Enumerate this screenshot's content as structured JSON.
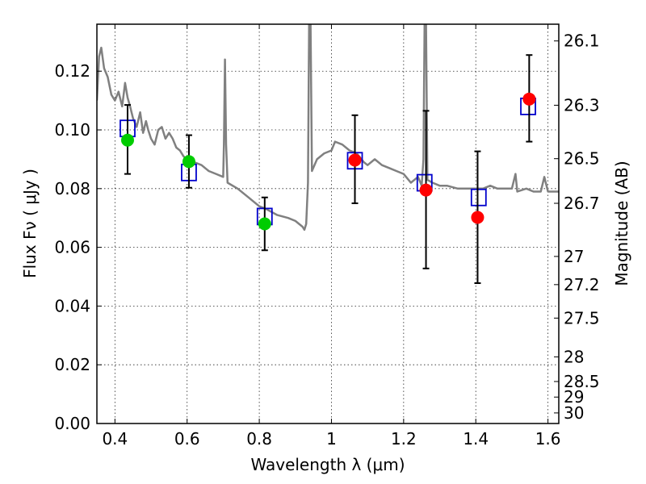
{
  "chart_data": {
    "type": "scatter",
    "xlabel": "Wavelength  λ (μm)",
    "ylabel": "Flux  Fν  ( μJy )",
    "y2label": "Magnitude (AB)",
    "xlim": [
      0.35,
      1.63
    ],
    "ylim": [
      0.0,
      0.136
    ],
    "grid": true,
    "x_ticks": [
      0.4,
      0.6,
      0.8,
      1.0,
      1.2,
      1.4,
      1.6
    ],
    "x_tick_labels": [
      "0.4",
      "0.6",
      "0.8",
      "1",
      "1.2",
      "1.4",
      "1.6"
    ],
    "y_ticks": [
      0.0,
      0.02,
      0.04,
      0.06,
      0.08,
      0.1,
      0.12
    ],
    "y_tick_labels": [
      "0.00",
      "0.02",
      "0.04",
      "0.06",
      "0.08",
      "0.10",
      "0.12"
    ],
    "mag_ticks": [
      {
        "label": "26.1",
        "flux": 0.1303
      },
      {
        "label": "26.3",
        "flux": 0.1084
      },
      {
        "label": "26.5",
        "flux": 0.0902
      },
      {
        "label": "26.7",
        "flux": 0.075
      },
      {
        "label": "27",
        "flux": 0.0569
      },
      {
        "label": "27.2",
        "flux": 0.0473
      },
      {
        "label": "27.5",
        "flux": 0.0359
      },
      {
        "label": "28",
        "flux": 0.0227
      },
      {
        "label": "28.5",
        "flux": 0.0143
      },
      {
        "label": "29",
        "flux": 0.009
      },
      {
        "label": "30",
        "flux": 0.0036
      }
    ],
    "series": [
      {
        "type": "line",
        "color": "#808080",
        "points": [
          [
            0.35,
            0.11
          ],
          [
            0.356,
            0.125
          ],
          [
            0.362,
            0.128
          ],
          [
            0.37,
            0.121
          ],
          [
            0.38,
            0.118
          ],
          [
            0.39,
            0.112
          ],
          [
            0.4,
            0.11
          ],
          [
            0.41,
            0.113
          ],
          [
            0.42,
            0.108
          ],
          [
            0.428,
            0.116
          ],
          [
            0.435,
            0.111
          ],
          [
            0.442,
            0.108
          ],
          [
            0.45,
            0.104
          ],
          [
            0.46,
            0.101
          ],
          [
            0.47,
            0.106
          ],
          [
            0.478,
            0.099
          ],
          [
            0.486,
            0.103
          ],
          [
            0.492,
            0.1
          ],
          [
            0.5,
            0.097
          ],
          [
            0.51,
            0.095
          ],
          [
            0.52,
            0.1
          ],
          [
            0.53,
            0.101
          ],
          [
            0.54,
            0.097
          ],
          [
            0.55,
            0.099
          ],
          [
            0.56,
            0.097
          ],
          [
            0.57,
            0.094
          ],
          [
            0.58,
            0.093
          ],
          [
            0.59,
            0.091
          ],
          [
            0.6,
            0.09
          ],
          [
            0.62,
            0.089
          ],
          [
            0.64,
            0.088
          ],
          [
            0.66,
            0.086
          ],
          [
            0.68,
            0.085
          ],
          [
            0.7,
            0.084
          ],
          [
            0.702,
            0.095
          ],
          [
            0.705,
            0.124
          ],
          [
            0.708,
            0.095
          ],
          [
            0.712,
            0.082
          ],
          [
            0.74,
            0.08
          ],
          [
            0.77,
            0.077
          ],
          [
            0.8,
            0.074
          ],
          [
            0.82,
            0.073
          ],
          [
            0.85,
            0.071
          ],
          [
            0.88,
            0.07
          ],
          [
            0.9,
            0.069
          ],
          [
            0.92,
            0.067
          ],
          [
            0.925,
            0.066
          ],
          [
            0.93,
            0.068
          ],
          [
            0.935,
            0.082
          ],
          [
            0.938,
            0.136
          ],
          [
            0.942,
            0.136
          ],
          [
            0.946,
            0.086
          ],
          [
            0.96,
            0.09
          ],
          [
            0.98,
            0.092
          ],
          [
            1.0,
            0.093
          ],
          [
            1.01,
            0.096
          ],
          [
            1.03,
            0.095
          ],
          [
            1.05,
            0.093
          ],
          [
            1.07,
            0.092
          ],
          [
            1.09,
            0.089
          ],
          [
            1.1,
            0.088
          ],
          [
            1.12,
            0.09
          ],
          [
            1.14,
            0.088
          ],
          [
            1.16,
            0.087
          ],
          [
            1.18,
            0.086
          ],
          [
            1.2,
            0.085
          ],
          [
            1.22,
            0.082
          ],
          [
            1.24,
            0.084
          ],
          [
            1.25,
            0.081
          ],
          [
            1.255,
            0.09
          ],
          [
            1.258,
            0.136
          ],
          [
            1.262,
            0.136
          ],
          [
            1.266,
            0.083
          ],
          [
            1.28,
            0.082
          ],
          [
            1.3,
            0.081
          ],
          [
            1.32,
            0.081
          ],
          [
            1.35,
            0.08
          ],
          [
            1.38,
            0.08
          ],
          [
            1.4,
            0.08
          ],
          [
            1.42,
            0.08
          ],
          [
            1.44,
            0.081
          ],
          [
            1.46,
            0.08
          ],
          [
            1.48,
            0.08
          ],
          [
            1.5,
            0.08
          ],
          [
            1.51,
            0.085
          ],
          [
            1.515,
            0.079
          ],
          [
            1.54,
            0.08
          ],
          [
            1.56,
            0.079
          ],
          [
            1.58,
            0.079
          ],
          [
            1.59,
            0.084
          ],
          [
            1.6,
            0.079
          ],
          [
            1.63,
            0.079
          ]
        ]
      },
      {
        "name": "",
        "type": "scatter-open-square",
        "color": "#0000cc",
        "points": [
          [
            0.435,
            0.1005
          ],
          [
            0.605,
            0.0855
          ],
          [
            0.815,
            0.0705
          ],
          [
            1.065,
            0.0895
          ],
          [
            1.258,
            0.082
          ],
          [
            1.408,
            0.077
          ],
          [
            1.545,
            0.108
          ]
        ]
      },
      {
        "name": "",
        "type": "scatter-errorbar",
        "color": "#00cc00",
        "points": [
          {
            "x": 0.435,
            "y": 0.0965,
            "ylo": 0.085,
            "yhi": 0.1085
          },
          {
            "x": 0.605,
            "y": 0.0892,
            "ylo": 0.0803,
            "yhi": 0.0982
          },
          {
            "x": 0.815,
            "y": 0.068,
            "ylo": 0.059,
            "yhi": 0.077
          }
        ]
      },
      {
        "name": "",
        "type": "scatter-errorbar",
        "color": "#ff0000",
        "points": [
          {
            "x": 1.065,
            "y": 0.0897,
            "ylo": 0.075,
            "yhi": 0.105
          },
          {
            "x": 1.262,
            "y": 0.0795,
            "ylo": 0.0528,
            "yhi": 0.1065
          },
          {
            "x": 1.405,
            "y": 0.0702,
            "ylo": 0.0478,
            "yhi": 0.0927
          },
          {
            "x": 1.548,
            "y": 0.1105,
            "ylo": 0.096,
            "yhi": 0.1255
          }
        ]
      }
    ]
  }
}
